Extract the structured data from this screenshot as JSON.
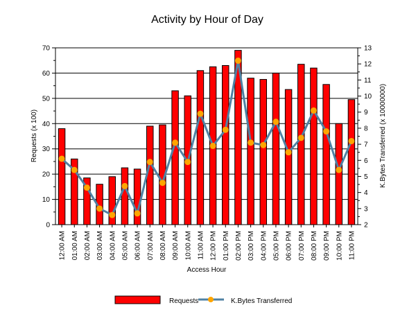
{
  "chart_data": {
    "type": "bar",
    "title": "Activity by Hour of Day",
    "xlabel": "Access Hour",
    "ylabel": "Requests (x 100)",
    "y2label": "K.Bytes Transferred (x 10000000)",
    "ylim": [
      0,
      70
    ],
    "y2lim": [
      2,
      13
    ],
    "yticks": [
      "0",
      "10",
      "20",
      "30",
      "40",
      "50",
      "60",
      "70"
    ],
    "y2ticks": [
      "2",
      "3",
      "4",
      "5",
      "6",
      "7",
      "8",
      "9",
      "10",
      "11",
      "12",
      "13"
    ],
    "grid": true,
    "legend_position": "bottom",
    "categories": [
      "12:00 AM",
      "01:00 AM",
      "02:00 AM",
      "03:00 AM",
      "04:00 AM",
      "05:00 AM",
      "06:00 AM",
      "07:00 AM",
      "08:00 AM",
      "09:00 AM",
      "10:00 AM",
      "11:00 AM",
      "12:00 PM",
      "01:00 PM",
      "02:00 PM",
      "03:00 PM",
      "04:00 PM",
      "05:00 PM",
      "06:00 PM",
      "07:00 PM",
      "08:00 PM",
      "09:00 PM",
      "10:00 PM",
      "11:00 PM"
    ],
    "series": [
      {
        "name": "Requests",
        "type": "bar",
        "axis": "left",
        "color": "#ff0000",
        "values": [
          38,
          26,
          18.5,
          16,
          19,
          22.5,
          22,
          39,
          39.5,
          53,
          51,
          61,
          62.5,
          63,
          69,
          58,
          57.5,
          60,
          53.5,
          63.5,
          62,
          55.5,
          40,
          49.5
        ]
      },
      {
        "name": "K.Bytes Transferred",
        "type": "line",
        "axis": "right",
        "color": "#4f81a3",
        "marker_color": "#ffa500",
        "values": [
          6.1,
          5.4,
          4.3,
          3.0,
          2.6,
          4.4,
          2.7,
          5.9,
          4.6,
          7.1,
          5.9,
          8.9,
          6.9,
          7.9,
          12.2,
          7.1,
          6.95,
          8.4,
          6.5,
          7.4,
          9.1,
          7.8,
          5.4,
          7.2
        ]
      }
    ]
  }
}
